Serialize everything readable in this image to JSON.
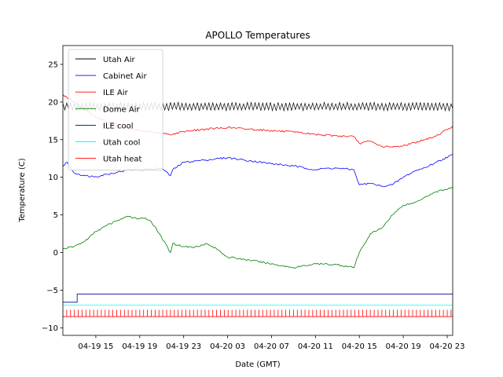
{
  "chart_data": {
    "type": "line",
    "title": "APOLLO Temperatures",
    "xlabel": "Date (GMT)",
    "ylabel": "Temperature (C)",
    "xlim": [
      12,
      47.5
    ],
    "ylim": [
      -11,
      27.5
    ],
    "yticks": [
      -10,
      -5,
      0,
      5,
      10,
      15,
      20,
      25
    ],
    "ytick_labels": [
      "−10",
      "−5",
      "0",
      "5",
      "10",
      "15",
      "20",
      "25"
    ],
    "xticks": [
      15,
      19,
      23,
      27,
      31,
      35,
      39,
      43,
      47
    ],
    "xtick_labels": [
      "04-19 15",
      "04-19 19",
      "04-19 23",
      "04-20 03",
      "04-20 07",
      "04-20 11",
      "04-20 15",
      "04-20 19",
      "04-20 23"
    ],
    "legend_position": "upper-left",
    "series": [
      {
        "name": "Utah Air",
        "color": "#000000",
        "style": "oscillating",
        "x": [
          12,
          47.5
        ],
        "y": [
          19.4,
          19.4
        ],
        "amplitude": 0.45,
        "period_hours": 0.35
      },
      {
        "name": "Cabinet Air",
        "color": "#0000ff",
        "x": [
          12,
          12.4,
          13,
          14,
          15,
          16,
          17,
          18,
          19,
          20,
          21,
          21.8,
          22,
          23,
          25,
          27,
          29,
          31,
          33,
          35,
          36,
          37,
          38.5,
          39,
          40,
          41,
          42,
          43,
          44,
          45,
          46,
          47.5
        ],
        "y": [
          11.5,
          12,
          10.6,
          10.2,
          10.1,
          10.4,
          10.7,
          11,
          11,
          11.1,
          11.2,
          10.2,
          11,
          12,
          12.3,
          12.6,
          12.2,
          11.8,
          11.5,
          11,
          11.2,
          11.2,
          11,
          9,
          9.2,
          8.8,
          9,
          10,
          10.8,
          11.3,
          12,
          13
        ]
      },
      {
        "name": "ILE Air",
        "color": "#ff0000",
        "x": [
          12,
          13,
          14,
          15,
          16,
          17,
          18,
          19,
          20,
          21,
          22,
          23,
          25,
          27,
          29,
          31,
          33,
          35,
          37,
          38.5,
          39,
          40,
          41,
          42,
          43,
          44,
          45,
          46,
          47.5
        ],
        "y": [
          21,
          20,
          19,
          18,
          17.4,
          16.8,
          16.5,
          16.2,
          16,
          15.8,
          15.7,
          16.1,
          16.4,
          16.6,
          16.4,
          16.2,
          16,
          15.7,
          15.5,
          15.4,
          14.5,
          14.8,
          14.1,
          14,
          14.2,
          14.6,
          15,
          15.5,
          16.8
        ]
      },
      {
        "name": "Dome Air",
        "color": "#008000",
        "x": [
          12,
          13,
          14,
          15,
          16,
          17,
          18,
          19,
          19.5,
          20,
          21,
          21.8,
          22,
          23,
          24,
          25,
          26,
          27,
          29,
          31,
          33,
          35,
          37,
          38.5,
          39,
          40,
          41,
          42,
          43,
          44,
          45,
          46,
          47.5
        ],
        "y": [
          0.5,
          0.8,
          1.5,
          2.8,
          3.6,
          4.3,
          4.8,
          4.5,
          4.6,
          4.2,
          2,
          0,
          1.2,
          0.8,
          0.7,
          1.2,
          0.5,
          -0.6,
          -1,
          -1.5,
          -2,
          -1.5,
          -1.6,
          -2,
          0,
          2.5,
          3.2,
          5,
          6.3,
          6.6,
          7.4,
          8.1,
          8.6
        ]
      },
      {
        "name": "ILE cool",
        "color": "#00008b",
        "style": "step",
        "x": [
          12,
          13.3,
          13.3,
          47.5
        ],
        "y": [
          -6.6,
          -6.6,
          -5.5,
          -5.5
        ]
      },
      {
        "name": "Utah cool",
        "color": "#00ffff",
        "x": [
          12,
          47.5
        ],
        "y": [
          -7,
          -7
        ]
      },
      {
        "name": "Utah heat",
        "color": "#ff0000",
        "style": "spikes",
        "x": [
          12,
          47.5
        ],
        "y_low": -8.5,
        "y_high": -7.6,
        "spike_spacing_hours": 0.35
      }
    ]
  }
}
